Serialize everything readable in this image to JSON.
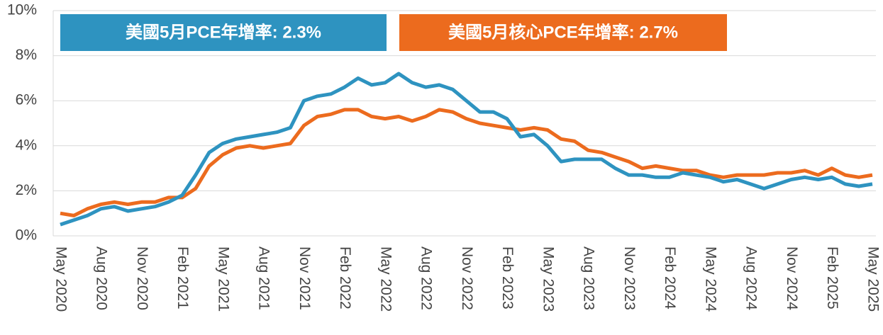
{
  "chart_data": {
    "type": "line",
    "categories": [
      "May 2020",
      null,
      null,
      "Aug 2020",
      null,
      null,
      "Nov 2020",
      null,
      null,
      "Feb 2021",
      null,
      null,
      "May 2021",
      null,
      null,
      "Aug 2021",
      null,
      null,
      "Nov 2021",
      null,
      null,
      "Feb 2022",
      null,
      null,
      "May 2022",
      null,
      null,
      "Aug 2022",
      null,
      null,
      "Nov 2022",
      null,
      null,
      "Feb 2023",
      null,
      null,
      "May 2023",
      null,
      null,
      "Aug 2023",
      null,
      null,
      "Nov 2023",
      null,
      null,
      "Feb 2024",
      null,
      null,
      "May 2024",
      null,
      null,
      "Aug 2024",
      null,
      null,
      "Nov 2024",
      null,
      null,
      "Feb 2025",
      null,
      null,
      "May 2025"
    ],
    "series": [
      {
        "name": "美國5月PCE年增率: 2.3%",
        "color": "#2e93c0",
        "values": [
          0.5,
          0.7,
          0.9,
          1.2,
          1.3,
          1.1,
          1.2,
          1.3,
          1.5,
          1.8,
          2.7,
          3.7,
          4.1,
          4.3,
          4.4,
          4.5,
          4.6,
          4.8,
          6.0,
          6.2,
          6.3,
          6.6,
          7.0,
          6.7,
          6.8,
          7.2,
          6.8,
          6.6,
          6.7,
          6.5,
          6.0,
          5.5,
          5.5,
          5.2,
          4.4,
          4.5,
          4.0,
          3.3,
          3.4,
          3.4,
          3.4,
          3.0,
          2.7,
          2.7,
          2.6,
          2.6,
          2.8,
          2.7,
          2.6,
          2.4,
          2.5,
          2.3,
          2.1,
          2.3,
          2.5,
          2.6,
          2.5,
          2.6,
          2.3,
          2.2,
          2.3
        ]
      },
      {
        "name": "美國5月核心PCE年增率: 2.7%",
        "color": "#ec6b1e",
        "values": [
          1.0,
          0.9,
          1.2,
          1.4,
          1.5,
          1.4,
          1.5,
          1.5,
          1.7,
          1.7,
          2.1,
          3.1,
          3.6,
          3.9,
          4.0,
          3.9,
          4.0,
          4.1,
          4.9,
          5.3,
          5.4,
          5.6,
          5.6,
          5.3,
          5.2,
          5.3,
          5.1,
          5.3,
          5.6,
          5.5,
          5.2,
          5.0,
          4.9,
          4.8,
          4.7,
          4.8,
          4.7,
          4.3,
          4.2,
          3.8,
          3.7,
          3.5,
          3.3,
          3.0,
          3.1,
          3.0,
          2.9,
          2.9,
          2.7,
          2.6,
          2.7,
          2.7,
          2.7,
          2.8,
          2.8,
          2.9,
          2.7,
          3.0,
          2.7,
          2.6,
          2.7
        ]
      }
    ],
    "ylim": [
      0,
      10
    ],
    "yticks": [
      {
        "value": 0,
        "label": "0%"
      },
      {
        "value": 2,
        "label": "2%"
      },
      {
        "value": 4,
        "label": "4%"
      },
      {
        "value": 6,
        "label": "6%"
      },
      {
        "value": 8,
        "label": "8%"
      },
      {
        "value": 10,
        "label": "10%"
      }
    ],
    "grid": true
  }
}
